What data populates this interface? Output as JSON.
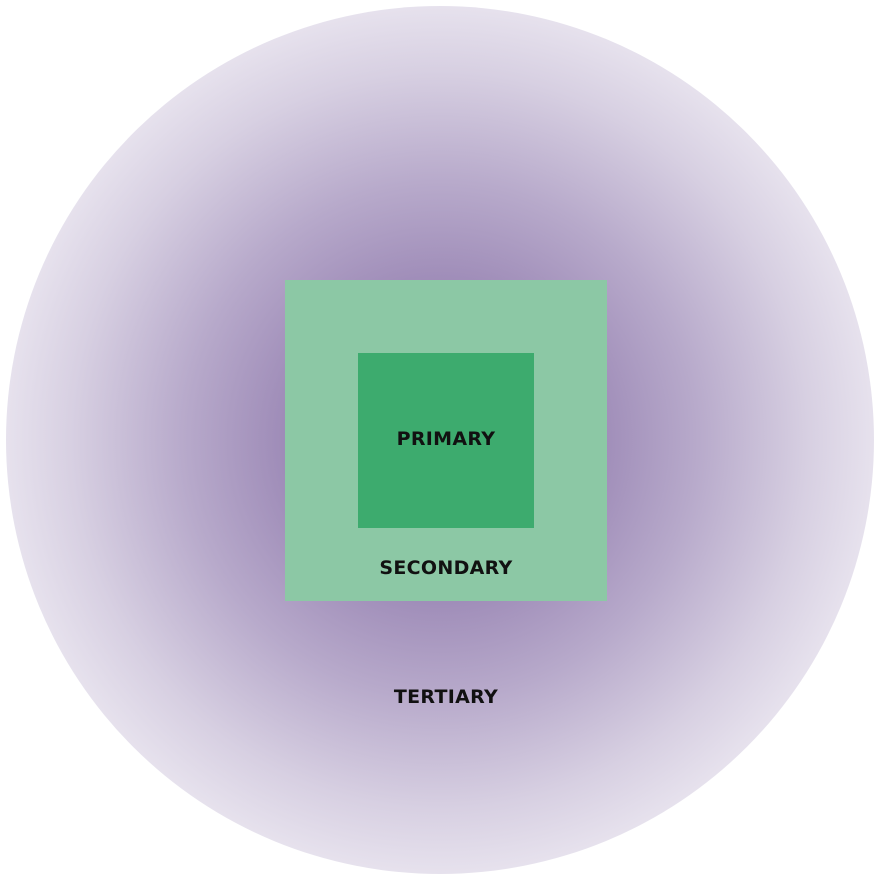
{
  "zones": {
    "primary": {
      "label": "PRIMARY",
      "color": "#3dab6e"
    },
    "secondary": {
      "label": "SECONDARY",
      "color": "#8cc8a5"
    },
    "tertiary": {
      "label": "TERTIARY",
      "color": "#6e5294"
    }
  }
}
